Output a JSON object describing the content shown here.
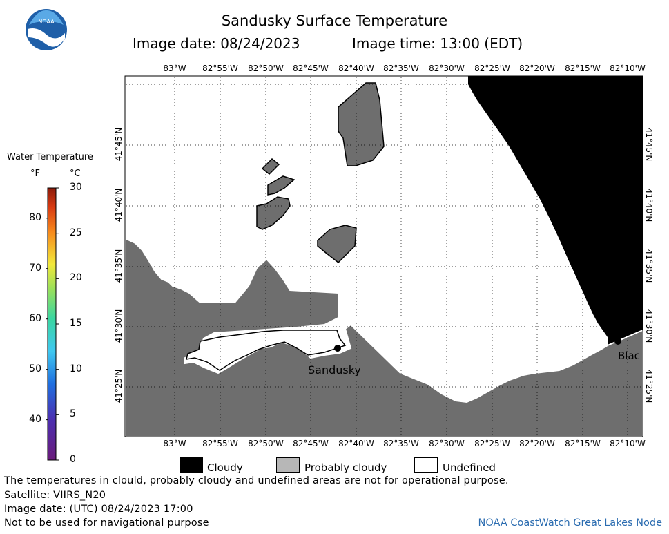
{
  "header": {
    "title": "Sandusky Surface Temperature",
    "image_date": "Image date: 08/24/2023",
    "image_time": "Image time: 13:00 (EDT)"
  },
  "logo": {
    "text": "NOAA"
  },
  "temperature_legend": {
    "title": "Water Temperature",
    "unit_f": "°F",
    "unit_c": "°C",
    "f_ticks": [
      "80",
      "70",
      "60",
      "50",
      "40"
    ],
    "c_ticks": [
      "30",
      "25",
      "20",
      "15",
      "10",
      "5",
      "0"
    ]
  },
  "map": {
    "lon_labels": [
      "83°W",
      "82°55'W",
      "82°50'W",
      "82°45'W",
      "82°40'W",
      "82°35'W",
      "82°30'W",
      "82°25'W",
      "82°20'W",
      "82°15'W",
      "82°10'W"
    ],
    "lat_labels": [
      "41°45'N",
      "41°40'N",
      "41°35'N",
      "41°30'N",
      "41°25'N"
    ],
    "places": [
      "Sandusky",
      "Blac"
    ]
  },
  "categories": {
    "cloudy": "Cloudy",
    "probably_cloudy": "Probably cloudy",
    "undefined": "Undefined"
  },
  "footer": {
    "disclaimer": "The temperatures in clould, probably cloudy and undefined areas are not for operational purpose.",
    "satellite": "Satellite: VIIRS_N20",
    "utc_date": "Image date: (UTC) 08/24/2023  17:00",
    "navigation": "Not to be used for navigational purpose",
    "credit": "NOAA CoastWatch Great Lakes Node"
  },
  "colors": {
    "land": "#6e6e6e",
    "cloud": "#000000",
    "water_undefined": "#ffffff",
    "credit_text": "#2b6cb0"
  }
}
